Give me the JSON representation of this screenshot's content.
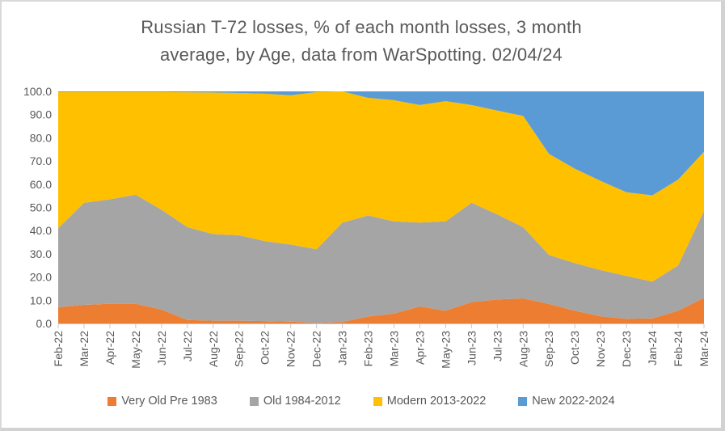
{
  "header": {
    "title_line1": "Russian T-72 losses, % of each month losses, 3 month",
    "title_line2": "average, by Age, data from WarSpotting. 02/04/24"
  },
  "chart_data": {
    "type": "area",
    "stacked": true,
    "stack_total": 100,
    "title": "Russian T-72 losses, % of each month losses, 3 month average, by Age, data from WarSpotting. 02/04/24",
    "xlabel": "",
    "ylabel": "",
    "ylim": [
      0,
      100
    ],
    "grid": false,
    "legend_position": "bottom",
    "y_ticks": [
      "0.0",
      "10.0",
      "20.0",
      "30.0",
      "40.0",
      "50.0",
      "60.0",
      "70.0",
      "80.0",
      "90.0",
      "100.0"
    ],
    "categories": [
      "Feb-22",
      "Mar-22",
      "Apr-22",
      "May-22",
      "Jun-22",
      "Jul-22",
      "Aug-22",
      "Sep-22",
      "Oct-22",
      "Nov-22",
      "Dec-22",
      "Jan-23",
      "Feb-23",
      "Mar-23",
      "Apr-23",
      "May-23",
      "Jun-23",
      "Jul-23",
      "Aug-23",
      "Sep-23",
      "Oct-23",
      "Nov-23",
      "Dec-23",
      "Jan-24",
      "Feb-24",
      "Mar-24"
    ],
    "series": [
      {
        "name": "Very Old Pre 1983",
        "color": "#ED7D31",
        "values": [
          7.0,
          8.0,
          8.5,
          8.5,
          6.0,
          1.5,
          1.2,
          1.2,
          1.0,
          0.8,
          0.2,
          0.6,
          3.0,
          4.3,
          7.3,
          5.5,
          9.2,
          10.3,
          10.8,
          8.4,
          5.5,
          3.1,
          2.0,
          2.2,
          5.5,
          11.0
        ]
      },
      {
        "name": "Old 1984-2012",
        "color": "#A5A5A5",
        "values": [
          34.0,
          44.0,
          45.0,
          47.0,
          43.0,
          40.0,
          37.3,
          36.8,
          34.5,
          33.2,
          31.8,
          42.9,
          43.5,
          39.7,
          36.2,
          38.5,
          42.8,
          36.7,
          30.7,
          21.1,
          20.5,
          19.9,
          18.5,
          15.8,
          19.5,
          37.5
        ]
      },
      {
        "name": "Modern 2013-2022",
        "color": "#FFC000",
        "values": [
          58.7,
          47.7,
          46.2,
          44.2,
          50.7,
          58.1,
          61.0,
          61.3,
          63.5,
          64.3,
          67.7,
          56.5,
          50.7,
          52.2,
          50.6,
          51.8,
          42.1,
          44.7,
          47.9,
          43.6,
          40.7,
          38.4,
          36.0,
          37.2,
          37.0,
          25.5
        ]
      },
      {
        "name": "New 2022-2024",
        "color": "#5B9BD5",
        "values": [
          0.3,
          0.3,
          0.3,
          0.3,
          0.3,
          0.4,
          0.5,
          0.7,
          1.0,
          1.7,
          0.3,
          0.0,
          2.8,
          3.8,
          5.9,
          4.2,
          5.9,
          8.3,
          10.6,
          26.9,
          33.3,
          38.6,
          43.5,
          44.8,
          38.0,
          26.0
        ]
      }
    ]
  },
  "colors": {
    "text": "#595959",
    "axis_line": "#c8c8c8",
    "background": "#ffffff",
    "border": "#d2d2d2"
  }
}
